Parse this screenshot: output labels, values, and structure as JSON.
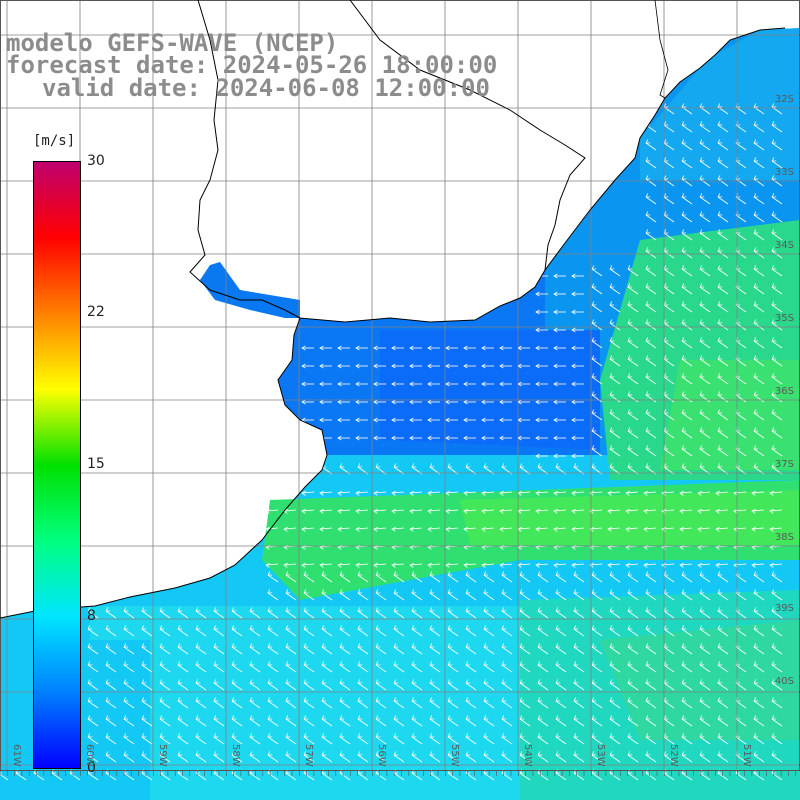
{
  "header": {
    "line1": "modelo GEFS-WAVE (NCEP)",
    "line2": "forecast date: 2024-05-26 18:00:00",
    "line3": "valid date: 2024-06-08 12:00:00"
  },
  "colorbar": {
    "unit": "[m/s]",
    "ticks": [
      "30",
      "22",
      "15",
      "8",
      "0"
    ],
    "tick_values": [
      30,
      22,
      15,
      8,
      0
    ],
    "vmin": 0,
    "vmax": 30,
    "stops": [
      "#0000ff",
      "#0080ff",
      "#00e5ff",
      "#00ff80",
      "#00e000",
      "#ffff00",
      "#ff8000",
      "#ff0000",
      "#c0006e"
    ]
  },
  "map": {
    "variable": "wind speed",
    "lat_labels": [
      "32S",
      "33S",
      "34S",
      "35S",
      "36S",
      "37S",
      "38S",
      "39S",
      "40S"
    ],
    "lon_labels": [
      "61W",
      "60W",
      "59W",
      "58W",
      "57W",
      "56W",
      "55W",
      "54W",
      "53W",
      "52W",
      "51W"
    ],
    "land_color": "#ffffff",
    "grid_color": "#808080",
    "coastline_color": "#000000",
    "arrow_color": "#ffffff"
  }
}
